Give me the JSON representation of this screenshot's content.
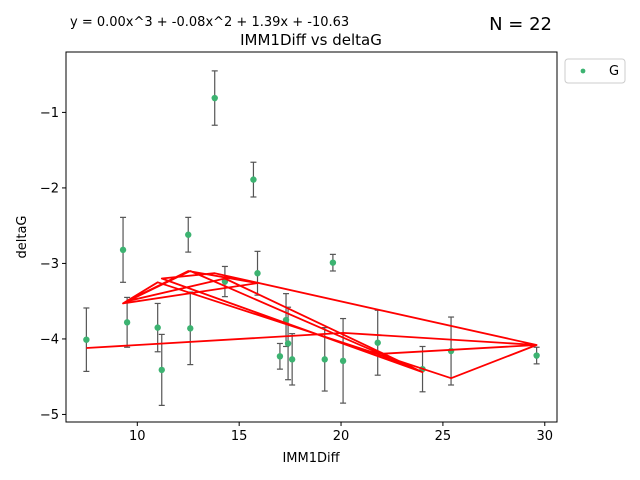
{
  "chart_data": {
    "type": "scatter",
    "title": "IMM1Diff vs deltaG",
    "xlabel": "IMM1Diff",
    "ylabel": "deltaG",
    "equation": "y = 0.00x^3 + -0.08x^2 + 1.39x + -10.63",
    "n_label": "N = 22",
    "xlim": [
      6.5,
      30.6
    ],
    "ylim": [
      -5.1,
      -0.2
    ],
    "xticks": [
      10,
      15,
      20,
      25,
      30
    ],
    "yticks": [
      -1,
      -2,
      -3,
      -4,
      -5
    ],
    "ytick_labels": [
      "−1",
      "−2",
      "−3",
      "−4",
      "−5"
    ],
    "grid": false,
    "legend_position": "outside-top-right",
    "series": [
      {
        "name": "G",
        "color": "#3cb371",
        "points": [
          {
            "x": 7.5,
            "y": -4.01,
            "err": 0.42
          },
          {
            "x": 9.3,
            "y": -2.82,
            "err": 0.43
          },
          {
            "x": 9.5,
            "y": -3.78,
            "err": 0.33
          },
          {
            "x": 11.0,
            "y": -3.85,
            "err": 0.32
          },
          {
            "x": 11.2,
            "y": -4.41,
            "err": 0.47
          },
          {
            "x": 12.5,
            "y": -2.62,
            "err": 0.23
          },
          {
            "x": 12.6,
            "y": -3.86,
            "err": 0.48
          },
          {
            "x": 13.8,
            "y": -0.81,
            "err": 0.36
          },
          {
            "x": 14.3,
            "y": -3.24,
            "err": 0.2
          },
          {
            "x": 15.7,
            "y": -1.89,
            "err": 0.23
          },
          {
            "x": 15.9,
            "y": -3.13,
            "err": 0.29
          },
          {
            "x": 17.0,
            "y": -4.23,
            "err": 0.17
          },
          {
            "x": 17.3,
            "y": -3.75,
            "err": 0.35
          },
          {
            "x": 17.4,
            "y": -4.06,
            "err": 0.48
          },
          {
            "x": 17.6,
            "y": -4.27,
            "err": 0.34
          },
          {
            "x": 19.2,
            "y": -4.27,
            "err": 0.42
          },
          {
            "x": 19.6,
            "y": -2.99,
            "err": 0.11
          },
          {
            "x": 20.1,
            "y": -4.29,
            "err": 0.56
          },
          {
            "x": 21.8,
            "y": -4.05,
            "err": 0.43
          },
          {
            "x": 24.0,
            "y": -4.4,
            "err": 0.3
          },
          {
            "x": 25.4,
            "y": -4.16,
            "err": 0.45
          },
          {
            "x": 29.6,
            "y": -4.22,
            "err": 0.11
          }
        ]
      }
    ],
    "fit_line": {
      "color": "#ff0000",
      "points": [
        [
          7.5,
          -4.12
        ],
        [
          20.1,
          -3.92
        ],
        [
          29.6,
          -4.08
        ],
        [
          25.4,
          -4.52
        ],
        [
          21.8,
          -4.2
        ],
        [
          29.6,
          -4.08
        ],
        [
          13.8,
          -3.13
        ],
        [
          11.2,
          -3.2
        ],
        [
          24.0,
          -4.44
        ],
        [
          12.6,
          -3.1
        ],
        [
          9.3,
          -3.53
        ],
        [
          11.0,
          -3.25
        ],
        [
          21.8,
          -4.2
        ],
        [
          24.0,
          -4.44
        ],
        [
          14.3,
          -3.2
        ],
        [
          9.5,
          -3.5
        ],
        [
          12.5,
          -3.1
        ],
        [
          15.9,
          -3.26
        ],
        [
          9.3,
          -3.53
        ]
      ]
    }
  }
}
